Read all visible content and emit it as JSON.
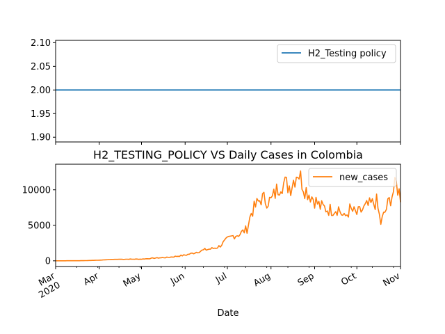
{
  "chart_data": [
    {
      "type": "line",
      "title": "",
      "xlabel": "",
      "ylabel": "",
      "ylim": [
        1.89,
        2.105
      ],
      "yticks": [
        1.9,
        1.95,
        2.0,
        2.05,
        2.1
      ],
      "ytick_labels": [
        "1.90",
        "1.95",
        "2.00",
        "2.05",
        "2.10"
      ],
      "legend_position": "top-right",
      "series": [
        {
          "name": "H2_Testing policy",
          "color": "#1f77b4",
          "x": [
            "2020-03-01",
            "2020-11-01"
          ],
          "values": [
            2.0,
            2.0
          ]
        }
      ]
    },
    {
      "type": "line",
      "title": "H2_TESTING_POLICY VS Daily Cases in Colombia",
      "xlabel": "Date",
      "ylabel": "",
      "ylim": [
        -800,
        13600
      ],
      "yticks": [
        0,
        5000,
        10000
      ],
      "ytick_labels": [
        "0",
        "5000",
        "10000"
      ],
      "legend_position": "top-right",
      "x_tick_labels": [
        "Mar\n2020",
        "Apr",
        "May",
        "Jun",
        "Jul",
        "Aug",
        "Sep",
        "Oct",
        "Nov"
      ],
      "series": [
        {
          "name": "new_cases",
          "color": "#ff7f0e",
          "x_start": "2020-03-01",
          "x_end": "2020-11-01",
          "keypoints": [
            [
              "2020-03-01",
              0
            ],
            [
              "2020-03-20",
              20
            ],
            [
              "2020-04-01",
              90
            ],
            [
              "2020-04-10",
              200
            ],
            [
              "2020-04-20",
              230
            ],
            [
              "2020-05-01",
              240
            ],
            [
              "2020-05-10",
              380
            ],
            [
              "2020-05-20",
              480
            ],
            [
              "2020-06-01",
              800
            ],
            [
              "2020-06-07",
              1100
            ],
            [
              "2020-06-15",
              1550
            ],
            [
              "2020-06-20",
              1700
            ],
            [
              "2020-06-25",
              2000
            ],
            [
              "2020-07-01",
              3000
            ],
            [
              "2020-07-05",
              3500
            ],
            [
              "2020-07-10",
              3800
            ],
            [
              "2020-07-15",
              4500
            ],
            [
              "2020-07-18",
              6800
            ],
            [
              "2020-07-25",
              8800
            ],
            [
              "2020-08-01",
              8400
            ],
            [
              "2020-08-08",
              11000
            ],
            [
              "2020-08-15",
              10500
            ],
            [
              "2020-08-20",
              12700
            ],
            [
              "2020-08-25",
              10200
            ],
            [
              "2020-09-01",
              8600
            ],
            [
              "2020-09-05",
              7600
            ],
            [
              "2020-09-12",
              7200
            ],
            [
              "2020-09-18",
              7400
            ],
            [
              "2020-09-22",
              6000
            ],
            [
              "2020-09-26",
              7200
            ],
            [
              "2020-10-01",
              6600
            ],
            [
              "2020-10-08",
              7600
            ],
            [
              "2020-10-15",
              8300
            ],
            [
              "2020-10-18",
              5300
            ],
            [
              "2020-10-24",
              8400
            ],
            [
              "2020-10-29",
              10800
            ],
            [
              "2020-11-01",
              9100
            ]
          ]
        }
      ]
    }
  ]
}
